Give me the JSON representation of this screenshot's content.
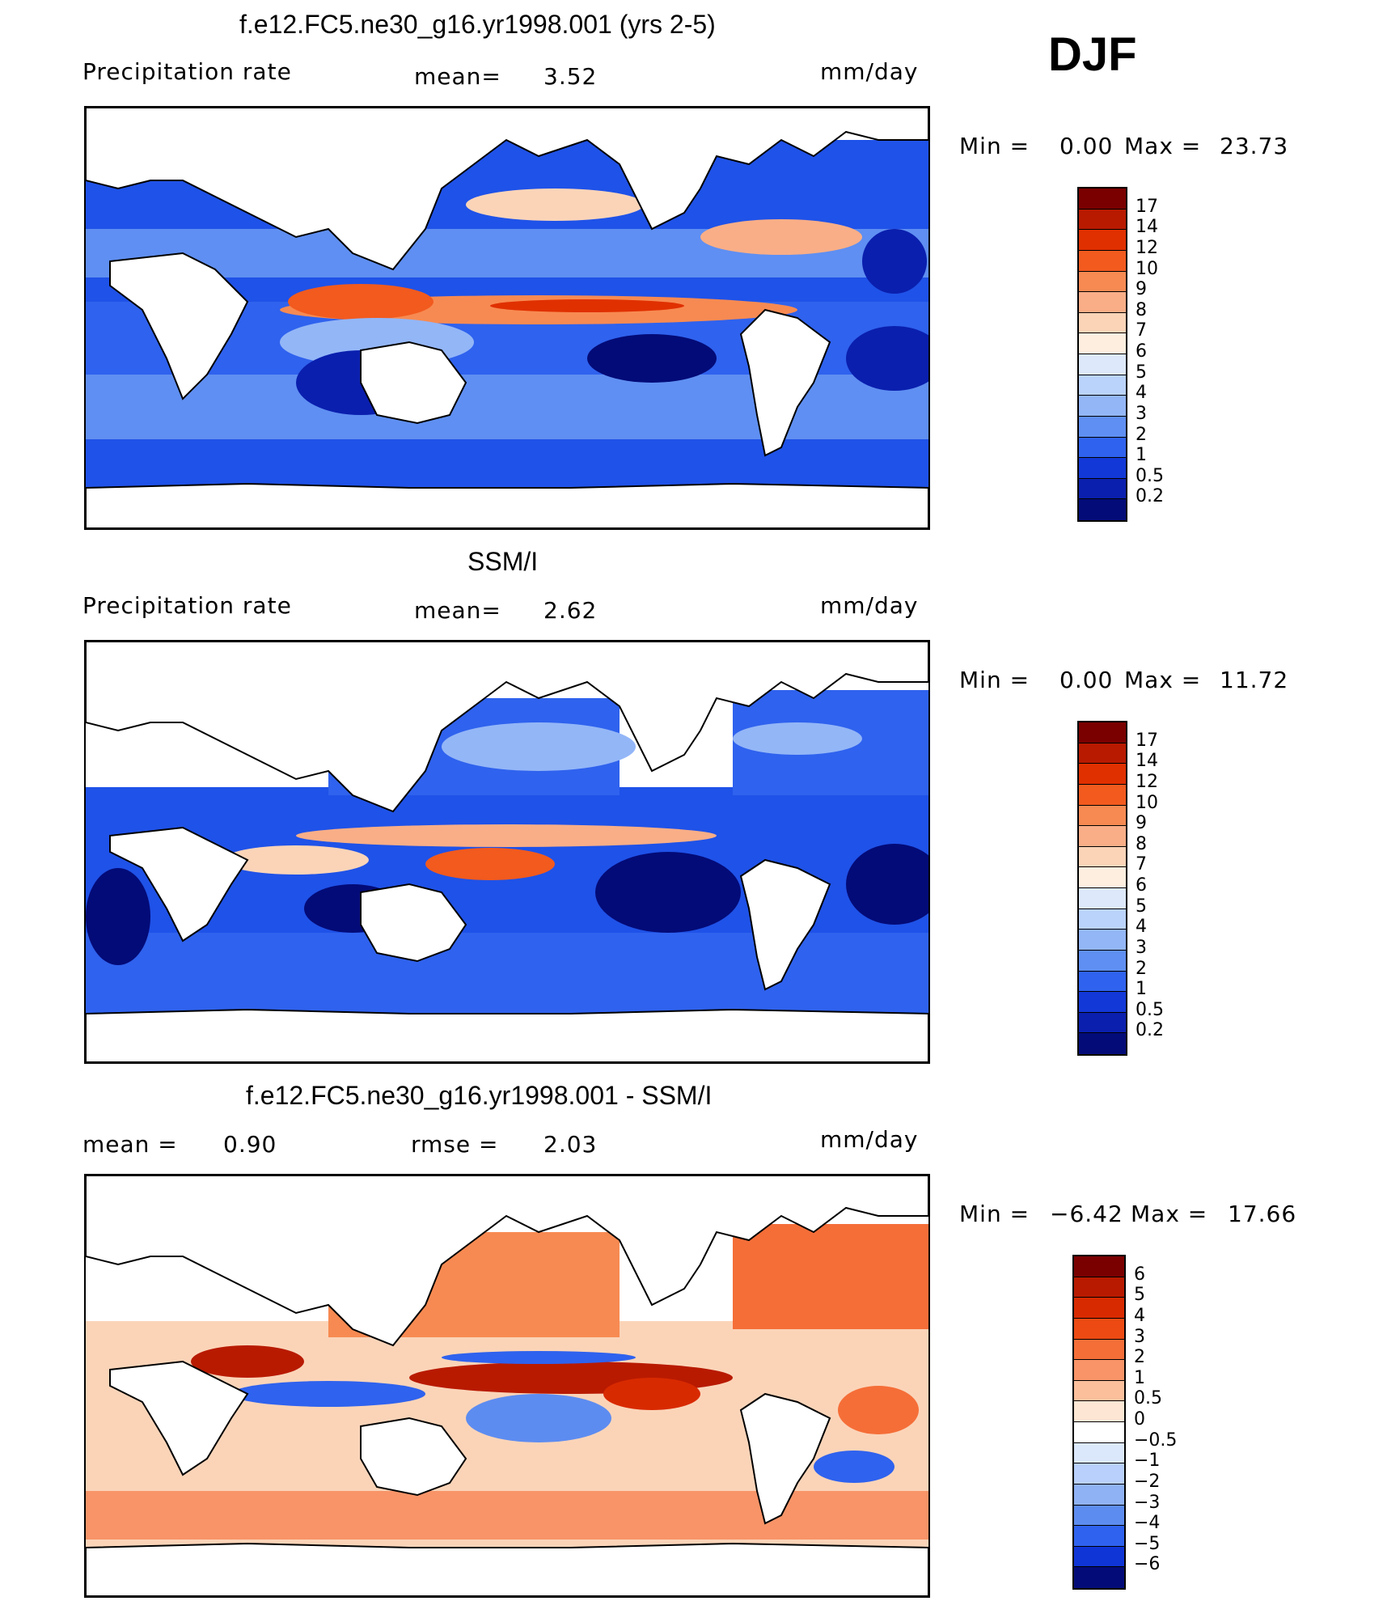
{
  "season": "DJF",
  "panels": [
    {
      "title": "f.e12.FC5.ne30_g16.yr1998.001 (yrs 2-5)",
      "left_label": "Precipitation rate",
      "mid_label": "mean=",
      "mid_value": "3.52",
      "units": "mm/day",
      "minmax": {
        "min_label": "Min =",
        "min_value": "0.00",
        "max_label": "Max =",
        "max_value": "23.73"
      },
      "colorbar_labels": [
        "17",
        "14",
        "12",
        "10",
        "9",
        "8",
        "7",
        "6",
        "5",
        "4",
        "3",
        "2",
        "1",
        "0.5",
        "0.2"
      ],
      "colorbar_colors": [
        "#7a0000",
        "#b81a00",
        "#e03000",
        "#f25a1e",
        "#f78a52",
        "#f9ae87",
        "#fbd4b8",
        "#fdeee0",
        "#dde9fb",
        "#bad3fb",
        "#93b6f7",
        "#5f8ff2",
        "#2f62ee",
        "#1238d8",
        "#0a1fae",
        "#030b78"
      ]
    },
    {
      "title": "SSM/I",
      "left_label": "Precipitation rate",
      "mid_label": "mean=",
      "mid_value": "2.62",
      "units": "mm/day",
      "minmax": {
        "min_label": "Min =",
        "min_value": "0.00",
        "max_label": "Max =",
        "max_value": "11.72"
      },
      "colorbar_labels": [
        "17",
        "14",
        "12",
        "10",
        "9",
        "8",
        "7",
        "6",
        "5",
        "4",
        "3",
        "2",
        "1",
        "0.5",
        "0.2"
      ],
      "colorbar_colors": [
        "#7a0000",
        "#b81a00",
        "#e03000",
        "#f25a1e",
        "#f78a52",
        "#f9ae87",
        "#fbd4b8",
        "#fdeee0",
        "#dde9fb",
        "#bad3fb",
        "#93b6f7",
        "#5f8ff2",
        "#2f62ee",
        "#1238d8",
        "#0a1fae",
        "#030b78"
      ]
    },
    {
      "title": "f.e12.FC5.ne30_g16.yr1998.001 - SSM/I",
      "left_label": "mean =",
      "left_value": "0.90",
      "mid_label": "rmse =",
      "mid_value": "2.03",
      "units": "mm/day",
      "minmax": {
        "min_label": "Min =",
        "min_value": "−6.42",
        "max_label": "Max =",
        "max_value": "17.66"
      },
      "colorbar_labels": [
        "6",
        "5",
        "4",
        "3",
        "2",
        "1",
        "0.5",
        "0",
        "−0.5",
        "−1",
        "−2",
        "−3",
        "−4",
        "−5",
        "−6"
      ],
      "colorbar_colors": [
        "#7a0000",
        "#b81a00",
        "#d82a00",
        "#ec4a12",
        "#f56e38",
        "#f89468",
        "#fbbf9c",
        "#fde6d4",
        "#ffffff",
        "#dbe8fb",
        "#b8d0fb",
        "#8fb2f5",
        "#5d8cf0",
        "#2f62ee",
        "#0f35d6",
        "#030b78"
      ]
    }
  ]
}
